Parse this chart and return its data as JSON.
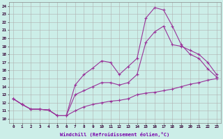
{
  "xlabel": "Windchill (Refroidissement éolien,°C)",
  "xticks": [
    0,
    1,
    2,
    3,
    4,
    5,
    6,
    7,
    8,
    9,
    10,
    11,
    12,
    13,
    14,
    15,
    16,
    17,
    18,
    19,
    20,
    21,
    22,
    23
  ],
  "yticks": [
    10,
    11,
    12,
    13,
    14,
    15,
    16,
    17,
    18,
    19,
    20,
    21,
    22,
    23,
    24
  ],
  "xlim": [
    -0.5,
    23.5
  ],
  "ylim": [
    9.5,
    24.5
  ],
  "bg_color": "#cceee8",
  "grid_color": "#b0b0b0",
  "line_color": "#993399",
  "line1_x": [
    0,
    1,
    2,
    3,
    4,
    5,
    6,
    7,
    8,
    9,
    10,
    11,
    12,
    13,
    14,
    15,
    16,
    17,
    18,
    19,
    20,
    21,
    22,
    23
  ],
  "line1_y": [
    12.5,
    11.8,
    11.2,
    11.2,
    11.1,
    10.4,
    10.4,
    11.0,
    11.5,
    11.8,
    12.0,
    12.2,
    12.3,
    12.5,
    13.0,
    13.2,
    13.3,
    13.5,
    13.7,
    14.0,
    14.3,
    14.5,
    14.8,
    15.0
  ],
  "line2_x": [
    0,
    1,
    2,
    3,
    4,
    5,
    6,
    7,
    8,
    9,
    10,
    11,
    12,
    13,
    14,
    15,
    16,
    17,
    18,
    19,
    20,
    21,
    22,
    23
  ],
  "line2_y": [
    12.5,
    11.8,
    11.2,
    11.2,
    11.1,
    10.4,
    10.4,
    14.2,
    15.5,
    16.3,
    17.2,
    17.0,
    15.5,
    16.5,
    17.5,
    22.5,
    23.8,
    23.5,
    21.5,
    19.2,
    18.0,
    17.5,
    16.2,
    15.2
  ],
  "line3_x": [
    0,
    1,
    2,
    3,
    4,
    5,
    6,
    7,
    8,
    9,
    10,
    11,
    12,
    13,
    14,
    15,
    16,
    17,
    18,
    19,
    20,
    21,
    22,
    23
  ],
  "line3_y": [
    12.5,
    11.8,
    11.2,
    11.2,
    11.1,
    10.4,
    10.4,
    13.0,
    13.5,
    14.0,
    14.5,
    14.5,
    14.2,
    14.5,
    15.5,
    19.5,
    20.8,
    21.5,
    19.2,
    19.0,
    18.5,
    18.0,
    17.0,
    15.5
  ]
}
